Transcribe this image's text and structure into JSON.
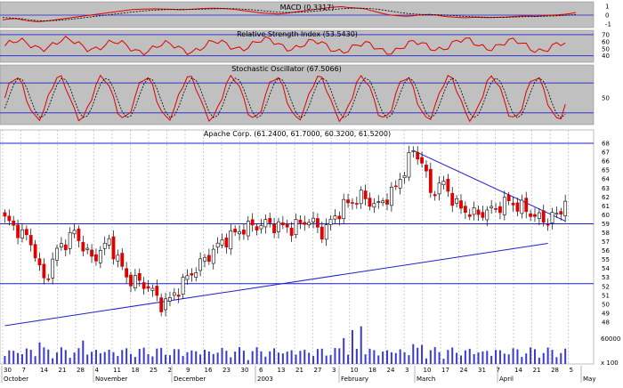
{
  "chart_data": {
    "type": "candlestick",
    "symbol": "Apache Corp.",
    "price_title": "Apache Corp. (61.2400, 61.7000, 60.3200, 61.5200)",
    "ohlc": {
      "open": 61.24,
      "high": 61.7,
      "low": 60.32,
      "close": 61.52
    },
    "price_axis": {
      "min": 47,
      "max": 68.5,
      "ticks": [
        48,
        49,
        50,
        51,
        52,
        53,
        54,
        55,
        56,
        57,
        58,
        59,
        60,
        61,
        62,
        63,
        64,
        65,
        66,
        67,
        68
      ]
    },
    "horizontal_lines": [
      68,
      59,
      52.3
    ],
    "trendlines": [
      {
        "name": "support",
        "from": {
          "index": 0,
          "value": 47.6
        },
        "to": {
          "index": 125,
          "value": 56.8
        }
      },
      {
        "name": "resistance",
        "from": {
          "index": 94,
          "value": 67.2
        },
        "to": {
          "index": 129,
          "value": 59.3
        }
      }
    ],
    "macd": {
      "label": "MACD (0.3317)",
      "ticks": [
        1,
        0,
        -1
      ],
      "range": [
        -1.5,
        1.5
      ],
      "macd": [
        -0.6,
        -0.5,
        -0.45,
        -0.55,
        -0.7,
        -0.8,
        -0.85,
        -0.8,
        -0.7,
        -0.6,
        -0.5,
        -0.4,
        -0.3,
        -0.2,
        -0.1,
        0.0,
        0.1,
        0.2,
        0.3,
        0.4,
        0.5,
        0.6,
        0.7,
        0.75,
        0.78,
        0.8,
        0.82,
        0.8,
        0.78,
        0.75,
        0.7,
        0.72,
        0.75,
        0.8,
        0.85,
        0.88,
        0.9,
        0.88,
        0.85,
        0.8,
        0.7,
        0.6,
        0.5,
        0.4,
        0.3,
        0.25,
        0.2,
        0.15,
        0.2,
        0.3,
        0.4,
        0.5,
        0.6,
        0.7,
        0.8,
        0.9,
        1.0,
        1.05,
        1.1,
        1.0,
        0.95,
        0.9,
        0.8,
        0.6,
        0.4,
        0.2,
        0.05,
        -0.05,
        -0.1,
        -0.15,
        -0.1,
        0.0,
        0.05,
        0.1,
        0.0,
        -0.1,
        -0.2,
        -0.25,
        -0.3,
        -0.35,
        -0.3,
        -0.28,
        -0.3,
        -0.32,
        -0.3,
        -0.28,
        -0.25,
        -0.2,
        -0.15,
        -0.1,
        -0.12,
        -0.14,
        -0.1,
        -0.05,
        0.0,
        0.05,
        0.1,
        0.2,
        0.33
      ],
      "signal": [
        -0.3,
        -0.35,
        -0.4,
        -0.45,
        -0.55,
        -0.65,
        -0.72,
        -0.75,
        -0.74,
        -0.7,
        -0.65,
        -0.58,
        -0.5,
        -0.42,
        -0.33,
        -0.24,
        -0.15,
        -0.06,
        0.03,
        0.12,
        0.21,
        0.3,
        0.39,
        0.47,
        0.54,
        0.6,
        0.65,
        0.69,
        0.72,
        0.73,
        0.73,
        0.73,
        0.74,
        0.75,
        0.77,
        0.79,
        0.81,
        0.83,
        0.84,
        0.84,
        0.82,
        0.78,
        0.73,
        0.67,
        0.6,
        0.53,
        0.46,
        0.4,
        0.36,
        0.35,
        0.36,
        0.39,
        0.43,
        0.49,
        0.55,
        0.62,
        0.69,
        0.76,
        0.83,
        0.87,
        0.89,
        0.9,
        0.88,
        0.84,
        0.77,
        0.67,
        0.55,
        0.44,
        0.33,
        0.23,
        0.16,
        0.11,
        0.08,
        0.07,
        0.06,
        0.03,
        -0.01,
        -0.06,
        -0.11,
        -0.16,
        -0.2,
        -0.23,
        -0.25,
        -0.27,
        -0.28,
        -0.28,
        -0.28,
        -0.26,
        -0.24,
        -0.21,
        -0.19,
        -0.18,
        -0.16,
        -0.14,
        -0.11,
        -0.08,
        -0.04,
        0.01,
        0.08
      ]
    },
    "rsi": {
      "label": "Relative Strength Index (53.5430)",
      "ticks": [
        70,
        60,
        50,
        40
      ],
      "range": [
        32,
        75
      ],
      "levels": [
        70,
        40
      ]
    },
    "stochastic": {
      "label": "Stochastic Oscillator (67.5066)",
      "ticks": [
        50
      ],
      "range": [
        0,
        100
      ],
      "levels": [
        80,
        20
      ]
    },
    "volume": {
      "tick_label": "60000",
      "unit_label": "x 100"
    },
    "x_axis": {
      "day_labels": [
        "30",
        "7",
        "14",
        "21",
        "28",
        "4",
        "11",
        "18",
        "25",
        "2",
        "9",
        "16",
        "23",
        "30",
        "6",
        "13",
        "21",
        "27",
        "3",
        "10",
        "18",
        "24",
        "3",
        "10",
        "17",
        "24",
        "31",
        "7",
        "14",
        "21",
        "28",
        "5"
      ],
      "month_labels": [
        "October",
        "November",
        "December",
        "2003",
        "February",
        "March",
        "April",
        "May"
      ]
    }
  }
}
